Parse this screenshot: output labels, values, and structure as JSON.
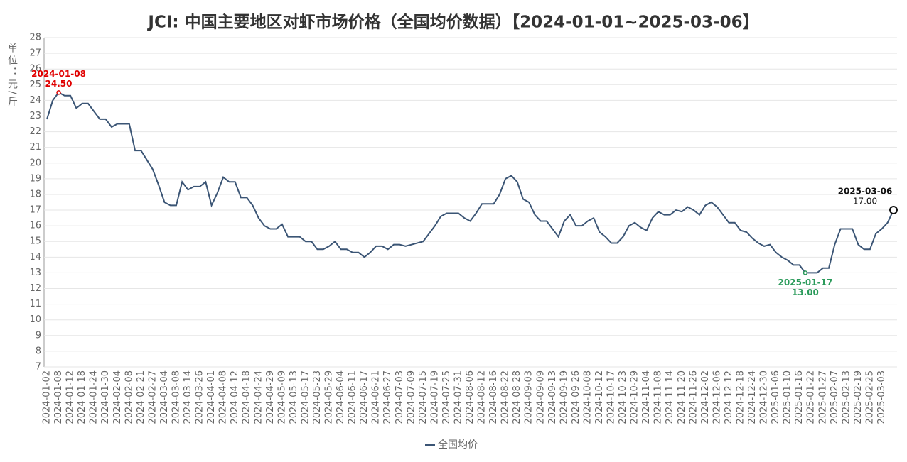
{
  "chart_data": {
    "type": "line",
    "title": "JCI: 中国主要地区对虾市场价格（全国均价数据）【2024-01-01~2025-03-06】",
    "y_axis_label": "单位：元/斤",
    "categories": [
      "2024-01-02",
      null,
      "2024-01-08",
      null,
      "2024-01-12",
      null,
      "2024-01-18",
      null,
      "2024-01-24",
      null,
      "2024-01-30",
      null,
      "2024-02-04",
      null,
      "2024-02-08",
      null,
      "2024-02-21",
      null,
      "2024-02-27",
      null,
      "2024-03-04",
      null,
      "2024-03-08",
      null,
      "2024-03-14",
      null,
      "2024-03-26",
      null,
      "2024-04-01",
      null,
      "2024-04-08",
      null,
      "2024-04-12",
      null,
      "2024-04-18",
      null,
      "2024-04-24",
      null,
      "2024-04-29",
      null,
      "2024-05-09",
      null,
      "2024-05-13",
      null,
      "2024-05-17",
      null,
      "2024-05-23",
      null,
      "2024-05-29",
      null,
      "2024-06-04",
      null,
      "2024-06-11",
      null,
      "2024-06-17",
      null,
      "2024-06-21",
      null,
      "2024-06-27",
      null,
      "2024-07-03",
      null,
      "2024-07-09",
      null,
      "2024-07-15",
      null,
      "2024-07-19",
      null,
      "2024-07-25",
      null,
      "2024-07-31",
      null,
      "2024-08-06",
      null,
      "2024-08-12",
      null,
      "2024-08-16",
      null,
      "2024-08-22",
      null,
      "2024-08-28",
      null,
      "2024-09-03",
      null,
      "2024-09-09",
      null,
      "2024-09-13",
      null,
      "2024-09-19",
      null,
      "2024-09-26",
      null,
      "2024-10-08",
      null,
      "2024-10-12",
      null,
      "2024-10-17",
      null,
      "2024-10-23",
      null,
      "2024-10-29",
      null,
      "2024-11-04",
      null,
      "2024-11-08",
      null,
      "2024-11-14",
      null,
      "2024-11-20",
      null,
      "2024-11-26",
      null,
      "2024-12-02",
      null,
      "2024-12-06",
      null,
      "2024-12-12",
      null,
      "2024-12-18",
      null,
      "2024-12-24",
      null,
      "2024-12-30",
      null,
      "2025-01-06",
      null,
      "2025-01-10",
      null,
      "2025-01-16",
      null,
      "2025-01-22",
      null,
      "2025-01-27",
      null,
      "2025-02-07",
      null,
      "2025-02-13",
      null,
      "2025-02-19",
      null,
      "2025-02-25",
      null,
      "2025-03-03",
      null,
      null
    ],
    "series": [
      {
        "name": "全国均价",
        "color": "#3b5575",
        "values": [
          22.8,
          24.0,
          24.5,
          24.3,
          24.3,
          23.5,
          23.8,
          23.8,
          23.3,
          22.8,
          22.8,
          22.3,
          22.5,
          22.5,
          22.5,
          20.8,
          20.8,
          20.2,
          19.6,
          18.6,
          17.5,
          17.3,
          17.3,
          18.8,
          18.3,
          18.5,
          18.5,
          18.8,
          17.3,
          18.1,
          19.1,
          18.8,
          18.8,
          17.8,
          17.8,
          17.3,
          16.5,
          16.0,
          15.8,
          15.8,
          16.1,
          15.3,
          15.3,
          15.3,
          15.0,
          15.0,
          14.5,
          14.5,
          14.7,
          15.0,
          14.5,
          14.5,
          14.3,
          14.3,
          14.0,
          14.3,
          14.7,
          14.7,
          14.5,
          14.8,
          14.8,
          14.7,
          14.8,
          14.9,
          15.0,
          15.5,
          16.0,
          16.6,
          16.8,
          16.8,
          16.8,
          16.5,
          16.3,
          16.8,
          17.4,
          17.4,
          17.4,
          18.0,
          19.0,
          19.2,
          18.8,
          17.7,
          17.5,
          16.7,
          16.3,
          16.3,
          15.8,
          15.3,
          16.3,
          16.7,
          16.0,
          16.0,
          16.3,
          16.5,
          15.6,
          15.3,
          14.9,
          14.9,
          15.3,
          16.0,
          16.2,
          15.9,
          15.7,
          16.5,
          16.9,
          16.7,
          16.7,
          17.0,
          16.9,
          17.2,
          17.0,
          16.7,
          17.3,
          17.5,
          17.2,
          16.7,
          16.2,
          16.2,
          15.7,
          15.6,
          15.2,
          14.9,
          14.7,
          14.8,
          14.3,
          14.0,
          13.8,
          13.5,
          13.5,
          13.0,
          13.0,
          13.0,
          13.3,
          13.3,
          14.8,
          15.8,
          15.8,
          15.8,
          14.8,
          14.5,
          14.5,
          15.5,
          15.8,
          16.2,
          17.0
        ]
      }
    ],
    "annotations": [
      {
        "at": "max",
        "color": "#e00000",
        "date": "2024-01-08",
        "label": "24.50"
      },
      {
        "at": "min",
        "color": "#2a9a5a",
        "date": "2025-01-17",
        "label": "13.00"
      },
      {
        "at": "last",
        "color": "#111111",
        "date": "2025-03-06",
        "label": "17.00"
      }
    ],
    "ylim": [
      7,
      28
    ],
    "yticks": [
      7,
      8,
      9,
      10,
      11,
      12,
      13,
      14,
      15,
      16,
      17,
      18,
      19,
      20,
      21,
      22,
      23,
      24,
      25,
      26,
      27,
      28
    ],
    "grid": true
  }
}
